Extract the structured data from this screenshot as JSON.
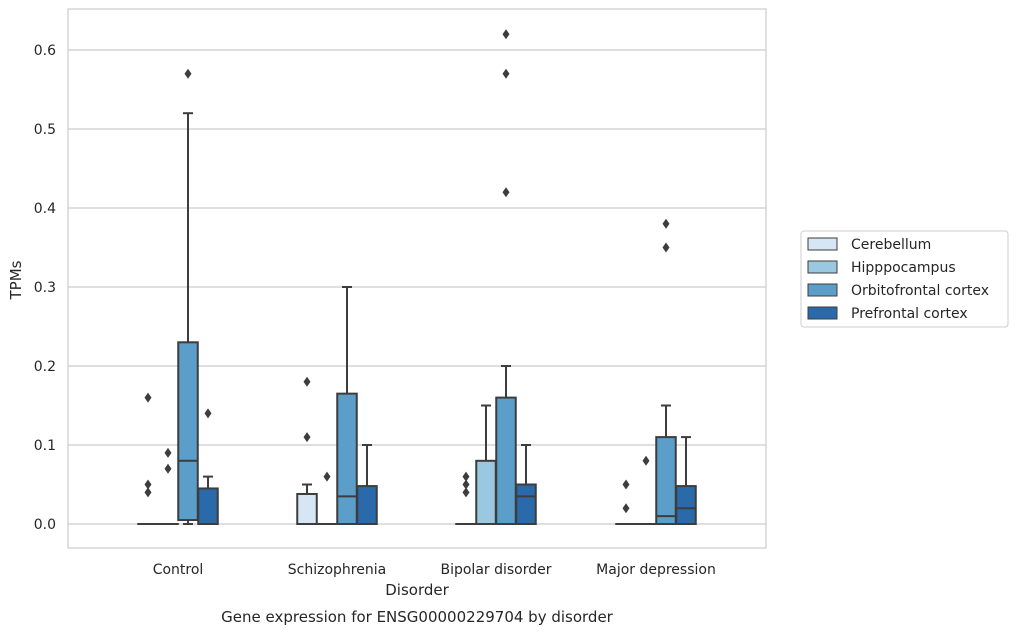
{
  "chart_data": {
    "type": "box",
    "title": "",
    "caption": "Gene expression for ENSG00000229704 by disorder",
    "xlabel": "Disorder",
    "ylabel": "TPMs",
    "ylim": [
      -0.03,
      0.655
    ],
    "yticks": [
      "0.0",
      "0.1",
      "0.2",
      "0.3",
      "0.4",
      "0.5",
      "0.6"
    ],
    "grid": "horizontal",
    "legend_position": "right",
    "categories": [
      "Control",
      "Schizophrenia",
      "Bipolar disorder",
      "Major depression"
    ],
    "series": [
      {
        "name": "Cerebellum",
        "color": "#d6e6f4",
        "boxes": [
          {
            "category": "Control",
            "q1": 0.0,
            "median": 0.0,
            "q3": 0.0,
            "whisker_low": 0.0,
            "whisker_high": 0.0,
            "outliers": [
              0.04,
              0.05,
              0.16
            ]
          },
          {
            "category": "Schizophrenia",
            "q1": 0.0,
            "median": 0.0,
            "q3": 0.038,
            "whisker_low": 0.0,
            "whisker_high": 0.05,
            "outliers": [
              0.11,
              0.18
            ]
          },
          {
            "category": "Bipolar disorder",
            "q1": 0.0,
            "median": 0.0,
            "q3": 0.0,
            "whisker_low": 0.0,
            "whisker_high": 0.0,
            "outliers": [
              0.04,
              0.05,
              0.06
            ]
          },
          {
            "category": "Major depression",
            "q1": 0.0,
            "median": 0.0,
            "q3": 0.0,
            "whisker_low": 0.0,
            "whisker_high": 0.0,
            "outliers": [
              0.02,
              0.05
            ]
          }
        ]
      },
      {
        "name": "Hipppocampus",
        "color": "#9ac8e0",
        "boxes": [
          {
            "category": "Control",
            "q1": 0.0,
            "median": 0.0,
            "q3": 0.0,
            "whisker_low": 0.0,
            "whisker_high": 0.0,
            "outliers": [
              0.07,
              0.09
            ]
          },
          {
            "category": "Schizophrenia",
            "q1": 0.0,
            "median": 0.0,
            "q3": 0.0,
            "whisker_low": 0.0,
            "whisker_high": 0.0,
            "outliers": [
              0.06
            ]
          },
          {
            "category": "Bipolar disorder",
            "q1": 0.0,
            "median": 0.0,
            "q3": 0.08,
            "whisker_low": 0.0,
            "whisker_high": 0.15,
            "outliers": []
          },
          {
            "category": "Major depression",
            "q1": 0.0,
            "median": 0.0,
            "q3": 0.0,
            "whisker_low": 0.0,
            "whisker_high": 0.0,
            "outliers": [
              0.08
            ]
          }
        ]
      },
      {
        "name": "Orbitofrontal cortex",
        "color": "#5a9ec9",
        "boxes": [
          {
            "category": "Control",
            "q1": 0.005,
            "median": 0.08,
            "q3": 0.23,
            "whisker_low": 0.0,
            "whisker_high": 0.52,
            "outliers": [
              0.57
            ]
          },
          {
            "category": "Schizophrenia",
            "q1": 0.0,
            "median": 0.035,
            "q3": 0.165,
            "whisker_low": 0.0,
            "whisker_high": 0.3,
            "outliers": []
          },
          {
            "category": "Bipolar disorder",
            "q1": 0.0,
            "median": 0.0,
            "q3": 0.16,
            "whisker_low": 0.0,
            "whisker_high": 0.2,
            "outliers": [
              0.42,
              0.57,
              0.62
            ]
          },
          {
            "category": "Major depression",
            "q1": 0.0,
            "median": 0.01,
            "q3": 0.11,
            "whisker_low": 0.0,
            "whisker_high": 0.15,
            "outliers": [
              0.35,
              0.38
            ]
          }
        ]
      },
      {
        "name": "Prefrontal cortex",
        "color": "#2a6aab",
        "boxes": [
          {
            "category": "Control",
            "q1": 0.0,
            "median": 0.0,
            "q3": 0.045,
            "whisker_low": 0.0,
            "whisker_high": 0.06,
            "outliers": [
              0.14
            ]
          },
          {
            "category": "Schizophrenia",
            "q1": 0.0,
            "median": 0.0,
            "q3": 0.048,
            "whisker_low": 0.0,
            "whisker_high": 0.1,
            "outliers": []
          },
          {
            "category": "Bipolar disorder",
            "q1": 0.0,
            "median": 0.035,
            "q3": 0.05,
            "whisker_low": 0.0,
            "whisker_high": 0.1,
            "outliers": []
          },
          {
            "category": "Major depression",
            "q1": 0.0,
            "median": 0.02,
            "q3": 0.048,
            "whisker_low": 0.0,
            "whisker_high": 0.11,
            "outliers": []
          }
        ]
      }
    ]
  }
}
